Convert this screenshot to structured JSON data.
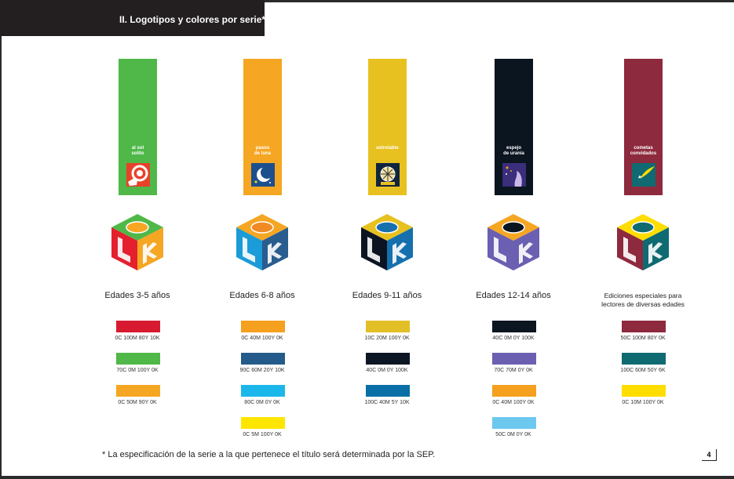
{
  "header": {
    "title": "II. Logotipos y colores por serie*"
  },
  "series": [
    {
      "name": "al sol\nsolito",
      "banner_color": "#4fb848",
      "icon": "hand-sun-icon",
      "age": "Edades 3-5 años",
      "cube_colors": {
        "top": "#4fb848",
        "left": "#e4202e",
        "right": "#f5a623",
        "badge": "#f5a623"
      },
      "swatches": [
        {
          "color": "#d71a2f",
          "label": "0C 100M 80Y 10K"
        },
        {
          "color": "#4fb848",
          "label": "70C 0M 100Y 0K"
        },
        {
          "color": "#f5a623",
          "label": "0C 50M 90Y 0K"
        }
      ]
    },
    {
      "name": "pasos\nde luna",
      "banner_color": "#f5a623",
      "icon": "moon-icon",
      "age": "Edades 6-8 años",
      "cube_colors": {
        "top": "#f5a623",
        "left": "#1b9bd7",
        "right": "#2a5d8f",
        "badge": "#f08a24"
      },
      "swatches": [
        {
          "color": "#f5a01f",
          "label": "0C 40M 100Y 0K"
        },
        {
          "color": "#245b8a",
          "label": "90C 60M 20Y 10K"
        },
        {
          "color": "#1cb7ea",
          "label": "80C 0M 0Y 0K"
        },
        {
          "color": "#ffe600",
          "label": "0C 5M 100Y 0K"
        }
      ]
    },
    {
      "name": "astrolabio",
      "banner_color": "#e7c11f",
      "icon": "astrolabe-icon",
      "age": "Edades 9-11 años",
      "cube_colors": {
        "top": "#e7c11f",
        "left": "#0d1421",
        "right": "#1670ad",
        "badge": "#1670ad"
      },
      "swatches": [
        {
          "color": "#e2bf27",
          "label": "10C 20M 100Y 0K"
        },
        {
          "color": "#0d1624",
          "label": "40C 0M 0Y 100K"
        },
        {
          "color": "#0a6fa6",
          "label": "100C 40M 5Y 10K"
        }
      ]
    },
    {
      "name": "espejo\nde urania",
      "banner_color": "#0b1520",
      "icon": "urania-mirror-icon",
      "age": "Edades 12-14 años",
      "cube_colors": {
        "top": "#f5a623",
        "left": "#6a5fb1",
        "right": "#6a5fb1",
        "badge": "#0b1520"
      },
      "swatches": [
        {
          "color": "#0b1520",
          "label": "40C 0M 0Y 100K"
        },
        {
          "color": "#6a5fb1",
          "label": "70C 70M 0Y 0K"
        },
        {
          "color": "#f5a01f",
          "label": "0C 40M 100Y 0K"
        },
        {
          "color": "#6cc8ef",
          "label": "50C 0M 0Y 0K"
        }
      ]
    },
    {
      "name": "cometas\nconvidados",
      "banner_color": "#8e2a3e",
      "icon": "comet-icon",
      "age": "Ediciones especiales para\nlectores de diversas edades",
      "cube_colors": {
        "top": "#ffdd00",
        "left": "#8e2a3e",
        "right": "#0f6a72",
        "badge": "#0f6a72"
      },
      "swatches": [
        {
          "color": "#8e2a3e",
          "label": "50C 100M 80Y 0K"
        },
        {
          "color": "#0f6a72",
          "label": "100C 60M 50Y 6K"
        },
        {
          "color": "#ffdd00",
          "label": "0C 10M 100Y 0K"
        }
      ]
    }
  ],
  "footnote": "* La especificación de la serie a la que pertenece el título será determinada por la SEP.",
  "page_number": "4"
}
